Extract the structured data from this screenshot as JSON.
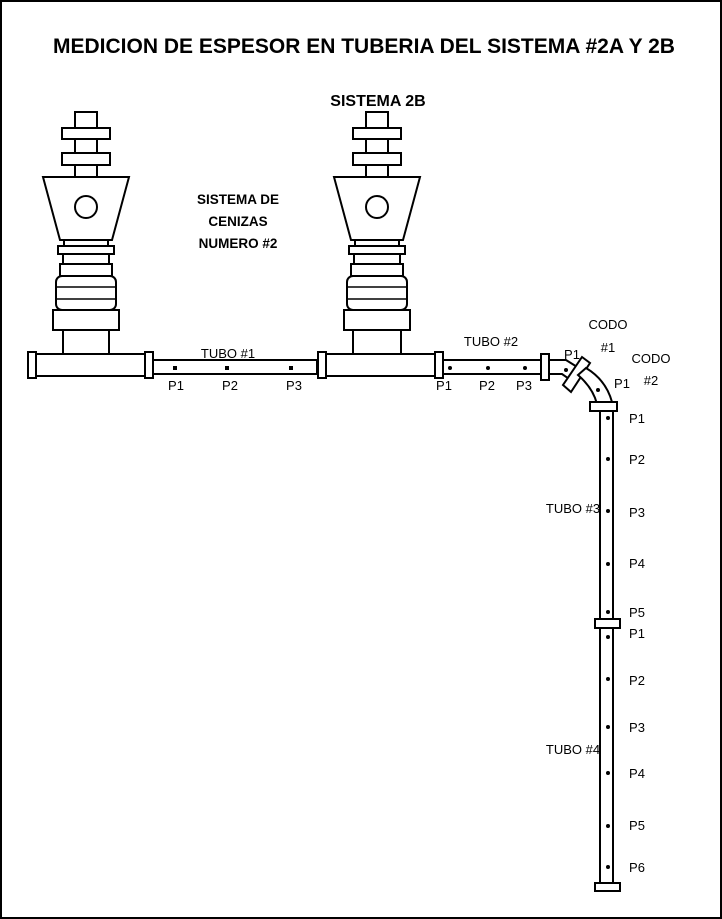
{
  "title": "MEDICION DE ESPESOR EN TUBERIA DEL SISTEMA #2A Y 2B",
  "system_2b": "SISTEMA 2B",
  "note": [
    "SISTEMA DE",
    "CENIZAS",
    "NUMERO #2"
  ],
  "tubes": {
    "tubo1": {
      "label": "TUBO #1",
      "points": [
        "P1",
        "P2",
        "P3"
      ]
    },
    "tubo2": {
      "label": "TUBO #2",
      "points": [
        "P1",
        "P2",
        "P3"
      ]
    },
    "tubo3": {
      "label": "TUBO #3",
      "points": [
        "P1",
        "P2",
        "P3",
        "P4",
        "P5"
      ]
    },
    "tubo4": {
      "label": "TUBO #4",
      "points": [
        "P1",
        "P2",
        "P3",
        "P4",
        "P5",
        "P6"
      ]
    }
  },
  "codos": {
    "codo1": {
      "label": [
        "CODO",
        "#1"
      ],
      "point": "P1"
    },
    "codo2": {
      "label": [
        "CODO",
        "#2"
      ],
      "point": "P1"
    }
  }
}
